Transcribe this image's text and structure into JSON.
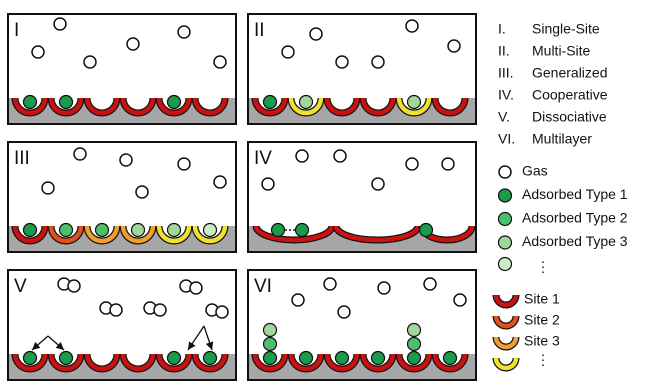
{
  "panels": [
    {
      "label": "I"
    },
    {
      "label": "II"
    },
    {
      "label": "III"
    },
    {
      "label": "IV"
    },
    {
      "label": "V"
    },
    {
      "label": "VI"
    }
  ],
  "models": [
    {
      "numeral": "I.",
      "name": "Single-Site"
    },
    {
      "numeral": "II.",
      "name": "Multi-Site"
    },
    {
      "numeral": "III.",
      "name": "Generalized"
    },
    {
      "numeral": "IV.",
      "name": "Cooperative"
    },
    {
      "numeral": "V.",
      "name": "Dissociative"
    },
    {
      "numeral": "VI.",
      "name": "Multilayer"
    }
  ],
  "species_legend": [
    "Gas",
    "Adsorbed Type 1",
    "Adsorbed Type 2",
    "Adsorbed Type 3",
    "⋮"
  ],
  "site_legend": [
    "Site 1",
    "Site 2",
    "Site 3",
    "⋮"
  ]
}
